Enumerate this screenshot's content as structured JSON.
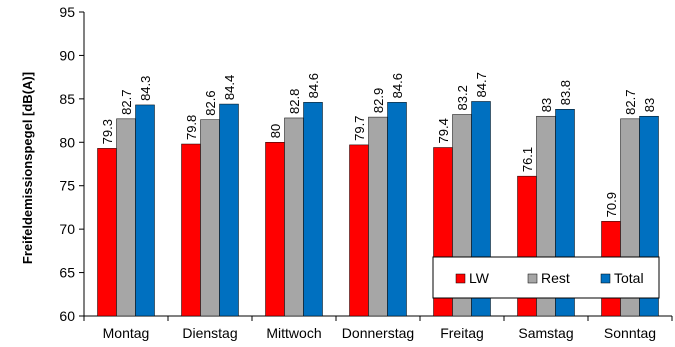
{
  "chart_data": {
    "type": "bar",
    "ylabel": "Freifeldemissionspegel [dB(A)]",
    "ylim": [
      60,
      95
    ],
    "yticks": [
      60,
      65,
      70,
      75,
      80,
      85,
      90,
      95
    ],
    "grid": false,
    "legend_position": "bottom-right",
    "categories": [
      "Montag",
      "Dienstag",
      "Mittwoch",
      "Donnerstag",
      "Freitag",
      "Samstag",
      "Sonntag"
    ],
    "series": [
      {
        "name": "LW",
        "color": "#ff0000",
        "values": [
          79.3,
          79.8,
          80,
          79.7,
          79.4,
          76.1,
          70.9
        ]
      },
      {
        "name": "Rest",
        "color": "#a6a6a6",
        "values": [
          82.7,
          82.6,
          82.8,
          82.9,
          83.2,
          83,
          82.7
        ]
      },
      {
        "name": "Total",
        "color": "#0070c0",
        "values": [
          84.3,
          84.4,
          84.6,
          84.6,
          84.7,
          83.8,
          83
        ]
      }
    ]
  }
}
